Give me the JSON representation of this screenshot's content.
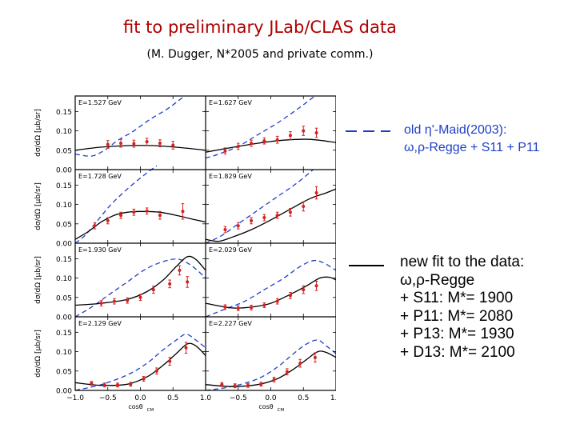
{
  "header": {
    "title": "fit to preliminary JLab/CLAS data",
    "subtitle": "(M. Dugger, N*2005 and private comm.)"
  },
  "legend": {
    "old_line1": "old η'-Maid(2003):",
    "old_line2": "ω,ρ-Regge + S11 + P11",
    "new_lines": [
      "new fit to the data:",
      "ω,ρ-Regge",
      "+ S11:  M*= 1900",
      "+ P11:  M*= 2080",
      "+ P13:  M*= 1930",
      "+ D13:  M*= 2100"
    ]
  },
  "colors": {
    "title": "#b00000",
    "data_points": "#d42020",
    "old_model": "#1f3fc8",
    "new_fit": "#000000",
    "legend_old_text": "#1f3fc8"
  },
  "chart_data": {
    "type": "scatter",
    "layout": "4x2 grid",
    "ylabel": "dσ/dΩ  [μb/sr]",
    "xlabel": "cosθ",
    "xlabel_sub": "CM",
    "xlim": [
      -1.0,
      1.0
    ],
    "ylim": [
      0.0,
      0.19
    ],
    "xticks": [
      "−1.0",
      "−0.5",
      "0.0",
      "0.5",
      "1.0"
    ],
    "yticks": [
      "0.00",
      "0.05",
      "0.10",
      "0.15"
    ],
    "panels": [
      {
        "label": "E=1.527 GeV",
        "points": [
          [
            -0.5,
            0.065
          ],
          [
            -0.3,
            0.068
          ],
          [
            -0.1,
            0.067
          ],
          [
            0.1,
            0.072
          ],
          [
            0.3,
            0.068
          ],
          [
            0.5,
            0.063
          ]
        ],
        "errors": [
          0.01,
          0.01,
          0.009,
          0.009,
          0.009,
          0.01
        ],
        "old": [
          [
            -1.0,
            0.04
          ],
          [
            -0.75,
            0.035
          ],
          [
            -0.55,
            0.05
          ],
          [
            -0.35,
            0.075
          ],
          [
            -0.1,
            0.1
          ],
          [
            0.15,
            0.13
          ],
          [
            0.4,
            0.155
          ],
          [
            0.6,
            0.18
          ],
          [
            0.75,
            0.2
          ]
        ],
        "fit": [
          [
            -1.0,
            0.05
          ],
          [
            -0.6,
            0.058
          ],
          [
            -0.2,
            0.062
          ],
          [
            0.2,
            0.062
          ],
          [
            0.6,
            0.057
          ],
          [
            1.0,
            0.05
          ]
        ]
      },
      {
        "label": "E=1.627 GeV",
        "points": [
          [
            -0.7,
            0.048
          ],
          [
            -0.5,
            0.06
          ],
          [
            -0.3,
            0.068
          ],
          [
            -0.1,
            0.074
          ],
          [
            0.1,
            0.077
          ],
          [
            0.3,
            0.088
          ],
          [
            0.5,
            0.1
          ],
          [
            0.7,
            0.095
          ]
        ],
        "errors": [
          0.008,
          0.008,
          0.008,
          0.008,
          0.009,
          0.01,
          0.012,
          0.012
        ],
        "old": [
          [
            -1.0,
            0.03
          ],
          [
            -0.8,
            0.04
          ],
          [
            -0.5,
            0.06
          ],
          [
            -0.2,
            0.09
          ],
          [
            0.1,
            0.12
          ],
          [
            0.4,
            0.155
          ],
          [
            0.6,
            0.18
          ],
          [
            0.75,
            0.2
          ]
        ],
        "fit": [
          [
            -1.0,
            0.045
          ],
          [
            -0.6,
            0.057
          ],
          [
            -0.2,
            0.068
          ],
          [
            0.2,
            0.076
          ],
          [
            0.6,
            0.078
          ],
          [
            1.0,
            0.07
          ]
        ]
      },
      {
        "label": "E=1.728 GeV",
        "points": [
          [
            -0.7,
            0.045
          ],
          [
            -0.5,
            0.058
          ],
          [
            -0.3,
            0.072
          ],
          [
            -0.1,
            0.08
          ],
          [
            0.1,
            0.083
          ],
          [
            0.3,
            0.072
          ],
          [
            0.65,
            0.082
          ]
        ],
        "errors": [
          0.008,
          0.008,
          0.008,
          0.008,
          0.008,
          0.01,
          0.02
        ],
        "old": [
          [
            -1.0,
            0.0
          ],
          [
            -0.85,
            0.02
          ],
          [
            -0.65,
            0.06
          ],
          [
            -0.45,
            0.1
          ],
          [
            -0.2,
            0.14
          ],
          [
            0.05,
            0.175
          ],
          [
            0.25,
            0.2
          ]
        ],
        "fit": [
          [
            -1.0,
            0.01
          ],
          [
            -0.8,
            0.03
          ],
          [
            -0.6,
            0.055
          ],
          [
            -0.4,
            0.072
          ],
          [
            -0.2,
            0.08
          ],
          [
            0.0,
            0.082
          ],
          [
            0.3,
            0.08
          ],
          [
            0.6,
            0.07
          ],
          [
            0.85,
            0.06
          ],
          [
            1.0,
            0.055
          ]
        ]
      },
      {
        "label": "E=1.829 GeV",
        "points": [
          [
            -0.7,
            0.035
          ],
          [
            -0.5,
            0.045
          ],
          [
            -0.3,
            0.058
          ],
          [
            -0.1,
            0.066
          ],
          [
            0.1,
            0.072
          ],
          [
            0.3,
            0.08
          ],
          [
            0.5,
            0.095
          ],
          [
            0.7,
            0.13
          ]
        ],
        "errors": [
          0.008,
          0.008,
          0.008,
          0.008,
          0.008,
          0.01,
          0.012,
          0.016
        ],
        "old": [
          [
            -1.0,
            0.0
          ],
          [
            -0.75,
            0.02
          ],
          [
            -0.5,
            0.05
          ],
          [
            -0.2,
            0.085
          ],
          [
            0.1,
            0.12
          ],
          [
            0.4,
            0.155
          ],
          [
            0.65,
            0.19
          ]
        ],
        "fit": [
          [
            -1.0,
            0.01
          ],
          [
            -0.8,
            0.005
          ],
          [
            -0.6,
            0.015
          ],
          [
            -0.3,
            0.035
          ],
          [
            0.0,
            0.06
          ],
          [
            0.3,
            0.088
          ],
          [
            0.6,
            0.115
          ],
          [
            0.85,
            0.13
          ],
          [
            1.0,
            0.14
          ]
        ]
      },
      {
        "label": "E=1.930 GeV",
        "points": [
          [
            -0.6,
            0.035
          ],
          [
            -0.4,
            0.04
          ],
          [
            -0.2,
            0.042
          ],
          [
            0.0,
            0.05
          ],
          [
            0.2,
            0.07
          ],
          [
            0.45,
            0.085
          ],
          [
            0.6,
            0.12
          ],
          [
            0.72,
            0.09
          ]
        ],
        "errors": [
          0.007,
          0.007,
          0.007,
          0.008,
          0.009,
          0.01,
          0.012,
          0.014
        ],
        "old": [
          [
            -1.0,
            0.0
          ],
          [
            -0.75,
            0.025
          ],
          [
            -0.5,
            0.055
          ],
          [
            -0.2,
            0.09
          ],
          [
            0.1,
            0.125
          ],
          [
            0.4,
            0.145
          ],
          [
            0.6,
            0.148
          ],
          [
            0.8,
            0.13
          ],
          [
            1.0,
            0.1
          ]
        ],
        "fit": [
          [
            -1.0,
            0.03
          ],
          [
            -0.6,
            0.035
          ],
          [
            -0.2,
            0.045
          ],
          [
            0.1,
            0.065
          ],
          [
            0.35,
            0.095
          ],
          [
            0.55,
            0.13
          ],
          [
            0.72,
            0.155
          ],
          [
            0.85,
            0.148
          ],
          [
            1.0,
            0.12
          ]
        ]
      },
      {
        "label": "E=2.029 GeV",
        "points": [
          [
            -0.7,
            0.025
          ],
          [
            -0.5,
            0.022
          ],
          [
            -0.3,
            0.024
          ],
          [
            -0.1,
            0.03
          ],
          [
            0.1,
            0.04
          ],
          [
            0.3,
            0.055
          ],
          [
            0.5,
            0.07
          ],
          [
            0.7,
            0.08
          ]
        ],
        "errors": [
          0.006,
          0.006,
          0.006,
          0.006,
          0.007,
          0.008,
          0.01,
          0.012
        ],
        "old": [
          [
            -1.0,
            0.0
          ],
          [
            -0.7,
            0.02
          ],
          [
            -0.4,
            0.04
          ],
          [
            -0.1,
            0.07
          ],
          [
            0.2,
            0.1
          ],
          [
            0.45,
            0.13
          ],
          [
            0.65,
            0.145
          ],
          [
            0.8,
            0.14
          ],
          [
            1.0,
            0.12
          ]
        ],
        "fit": [
          [
            -1.0,
            0.035
          ],
          [
            -0.6,
            0.023
          ],
          [
            -0.3,
            0.025
          ],
          [
            0.0,
            0.035
          ],
          [
            0.3,
            0.058
          ],
          [
            0.55,
            0.08
          ],
          [
            0.75,
            0.1
          ],
          [
            0.9,
            0.102
          ],
          [
            1.0,
            0.095
          ]
        ]
      },
      {
        "label": "E=2.129 GeV",
        "points": [
          [
            -0.75,
            0.018
          ],
          [
            -0.55,
            0.014
          ],
          [
            -0.35,
            0.014
          ],
          [
            -0.15,
            0.016
          ],
          [
            0.05,
            0.03
          ],
          [
            0.25,
            0.05
          ],
          [
            0.45,
            0.075
          ],
          [
            0.7,
            0.11
          ]
        ],
        "errors": [
          0.005,
          0.005,
          0.005,
          0.005,
          0.006,
          0.008,
          0.01,
          0.014
        ],
        "old": [
          [
            -1.0,
            0.0
          ],
          [
            -0.6,
            0.015
          ],
          [
            -0.2,
            0.04
          ],
          [
            0.1,
            0.07
          ],
          [
            0.35,
            0.105
          ],
          [
            0.55,
            0.13
          ],
          [
            0.7,
            0.145
          ],
          [
            0.85,
            0.13
          ],
          [
            1.0,
            0.11
          ]
        ],
        "fit": [
          [
            -1.0,
            0.02
          ],
          [
            -0.6,
            0.013
          ],
          [
            -0.2,
            0.016
          ],
          [
            0.1,
            0.035
          ],
          [
            0.35,
            0.065
          ],
          [
            0.55,
            0.095
          ],
          [
            0.72,
            0.12
          ],
          [
            0.85,
            0.115
          ],
          [
            1.0,
            0.09
          ]
        ]
      },
      {
        "label": "E=2.227 GeV",
        "points": [
          [
            -0.75,
            0.015
          ],
          [
            -0.55,
            0.012
          ],
          [
            -0.35,
            0.013
          ],
          [
            -0.15,
            0.016
          ],
          [
            0.05,
            0.028
          ],
          [
            0.25,
            0.048
          ],
          [
            0.45,
            0.07
          ],
          [
            0.68,
            0.085
          ]
        ],
        "errors": [
          0.005,
          0.005,
          0.005,
          0.005,
          0.006,
          0.008,
          0.01,
          0.012
        ],
        "old": [
          [
            -1.0,
            0.0
          ],
          [
            -0.6,
            0.01
          ],
          [
            -0.2,
            0.03
          ],
          [
            0.1,
            0.06
          ],
          [
            0.35,
            0.095
          ],
          [
            0.55,
            0.12
          ],
          [
            0.72,
            0.13
          ],
          [
            0.85,
            0.115
          ],
          [
            1.0,
            0.095
          ]
        ],
        "fit": [
          [
            -1.0,
            0.015
          ],
          [
            -0.6,
            0.01
          ],
          [
            -0.2,
            0.015
          ],
          [
            0.1,
            0.03
          ],
          [
            0.35,
            0.055
          ],
          [
            0.55,
            0.08
          ],
          [
            0.72,
            0.1
          ],
          [
            0.85,
            0.098
          ],
          [
            1.0,
            0.085
          ]
        ]
      }
    ]
  }
}
